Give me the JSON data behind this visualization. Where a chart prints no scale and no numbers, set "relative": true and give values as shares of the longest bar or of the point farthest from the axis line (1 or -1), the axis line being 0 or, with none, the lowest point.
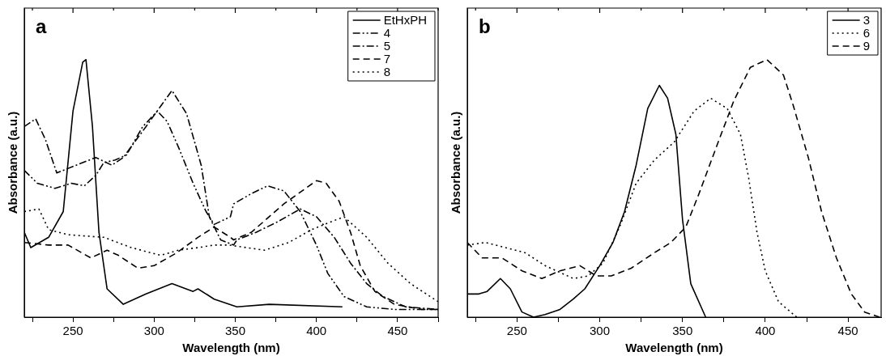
{
  "chart_data": [
    {
      "type": "line",
      "title": "a",
      "xlabel": "Wavelength (nm)",
      "ylabel": "Absorbance (a.u.)",
      "relative": true,
      "legend": "top right",
      "grid": false,
      "marker": "none",
      "xlim": [
        220,
        475
      ],
      "xticks": [
        {
          "value": 225,
          "label": null
        },
        250,
        {
          "value": 275,
          "label": null
        },
        300,
        {
          "value": 325,
          "label": null
        },
        350,
        {
          "value": 375,
          "label": null
        },
        400,
        {
          "value": 425,
          "label": null
        },
        450,
        {
          "value": 475,
          "label": null
        }
      ],
      "series": [
        {
          "name": "EtHxPH",
          "color": "#000000",
          "line_style": "solid",
          "x": [
            220,
            224,
            235,
            244,
            250,
            256,
            258,
            262,
            266,
            271,
            281,
            295,
            311,
            324,
            327,
            337,
            351,
            371,
            416
          ],
          "values": [
            0.33,
            0.27,
            0.31,
            0.41,
            0.8,
            0.99,
            1.0,
            0.74,
            0.33,
            0.11,
            0.05,
            0.09,
            0.13,
            0.1,
            0.11,
            0.07,
            0.04,
            0.05,
            0.04
          ]
        },
        {
          "name": "4",
          "color": "#000000",
          "line_style": "dashdotdot",
          "x": [
            220,
            228,
            239,
            249,
            257,
            264,
            269,
            276,
            283,
            293,
            302,
            308,
            315,
            324,
            332,
            337,
            347,
            349,
            360,
            370,
            380,
            390,
            400,
            407,
            417,
            431,
            448,
            475
          ],
          "values": [
            0.57,
            0.52,
            0.5,
            0.52,
            0.51,
            0.55,
            0.6,
            0.61,
            0.63,
            0.74,
            0.8,
            0.76,
            0.66,
            0.52,
            0.41,
            0.36,
            0.39,
            0.44,
            0.48,
            0.51,
            0.49,
            0.41,
            0.28,
            0.17,
            0.08,
            0.04,
            0.03,
            0.03
          ]
        },
        {
          "name": "5",
          "color": "#000000",
          "line_style": "dashdot",
          "x": [
            220,
            227,
            233,
            240,
            252,
            264,
            274,
            281,
            295,
            311,
            320,
            329,
            334,
            341,
            349,
            351,
            363,
            376,
            390,
            400,
            411,
            421,
            431,
            441,
            455,
            475
          ],
          "values": [
            0.74,
            0.77,
            0.69,
            0.56,
            0.59,
            0.62,
            0.59,
            0.62,
            0.74,
            0.88,
            0.79,
            0.59,
            0.39,
            0.3,
            0.28,
            0.3,
            0.33,
            0.37,
            0.42,
            0.39,
            0.31,
            0.21,
            0.13,
            0.08,
            0.04,
            0.03
          ]
        },
        {
          "name": "7",
          "color": "#000000",
          "line_style": "dashed",
          "x": [
            220,
            235,
            247,
            261,
            271,
            278,
            290,
            300,
            314,
            327,
            337,
            347,
            349,
            360,
            380,
            400,
            406,
            414,
            421,
            427,
            436,
            448,
            465,
            475
          ],
          "values": [
            0.29,
            0.28,
            0.28,
            0.23,
            0.26,
            0.24,
            0.19,
            0.2,
            0.25,
            0.31,
            0.35,
            0.31,
            0.3,
            0.33,
            0.44,
            0.53,
            0.52,
            0.45,
            0.33,
            0.2,
            0.1,
            0.05,
            0.03,
            0.03
          ]
        },
        {
          "name": "8",
          "color": "#000000",
          "line_style": "dotted",
          "x": [
            220,
            229,
            235,
            247,
            269,
            286,
            304,
            315,
            327,
            337,
            346,
            368,
            383,
            397,
            417,
            431,
            444,
            458,
            475
          ],
          "values": [
            0.41,
            0.42,
            0.34,
            0.32,
            0.31,
            0.27,
            0.24,
            0.26,
            0.27,
            0.28,
            0.28,
            0.26,
            0.29,
            0.34,
            0.39,
            0.31,
            0.21,
            0.13,
            0.06
          ]
        }
      ]
    },
    {
      "type": "line",
      "title": "b",
      "xlabel": "Wavelength (nm)",
      "ylabel": "Absorbance (a.u.)",
      "relative": true,
      "legend": "top right",
      "grid": false,
      "marker": "none",
      "xlim": [
        220,
        470
      ],
      "xticks": [
        {
          "value": 225,
          "label": null
        },
        250,
        {
          "value": 275,
          "label": null
        },
        300,
        {
          "value": 325,
          "label": null
        },
        350,
        {
          "value": 375,
          "label": null
        },
        400,
        {
          "value": 425,
          "label": null
        },
        450
      ],
      "series": [
        {
          "name": "3",
          "color": "#000000",
          "line_style": "solid",
          "x": [
            220,
            227,
            232,
            240,
            246,
            253,
            260,
            267,
            276,
            284,
            291,
            300,
            308,
            315,
            322,
            329,
            336,
            341,
            346,
            350,
            355,
            364
          ],
          "values": [
            0.09,
            0.09,
            0.1,
            0.15,
            0.11,
            0.02,
            0.0,
            0.01,
            0.03,
            0.07,
            0.11,
            0.2,
            0.29,
            0.41,
            0.59,
            0.81,
            0.9,
            0.85,
            0.71,
            0.38,
            0.13,
            0.0
          ]
        },
        {
          "name": "6",
          "color": "#000000",
          "line_style": "dotted",
          "x": [
            220,
            231,
            255,
            267,
            284,
            293,
            302,
            312,
            322,
            333,
            345,
            357,
            367,
            377,
            385,
            390,
            395,
            400,
            408,
            419
          ],
          "values": [
            0.28,
            0.29,
            0.25,
            0.2,
            0.15,
            0.16,
            0.21,
            0.35,
            0.52,
            0.61,
            0.68,
            0.8,
            0.85,
            0.81,
            0.71,
            0.54,
            0.33,
            0.18,
            0.06,
            0.0
          ]
        },
        {
          "name": "9",
          "color": "#000000",
          "line_style": "dashed",
          "x": [
            220,
            229,
            241,
            253,
            265,
            276,
            288,
            298,
            307,
            319,
            333,
            343,
            352,
            360,
            371,
            381,
            391,
            401,
            411,
            417,
            426,
            434,
            443,
            452,
            460,
            469
          ],
          "values": [
            0.29,
            0.23,
            0.23,
            0.18,
            0.15,
            0.18,
            0.2,
            0.16,
            0.16,
            0.19,
            0.25,
            0.29,
            0.35,
            0.48,
            0.67,
            0.84,
            0.97,
            1.0,
            0.94,
            0.82,
            0.62,
            0.41,
            0.23,
            0.09,
            0.02,
            0.0
          ]
        }
      ]
    }
  ]
}
